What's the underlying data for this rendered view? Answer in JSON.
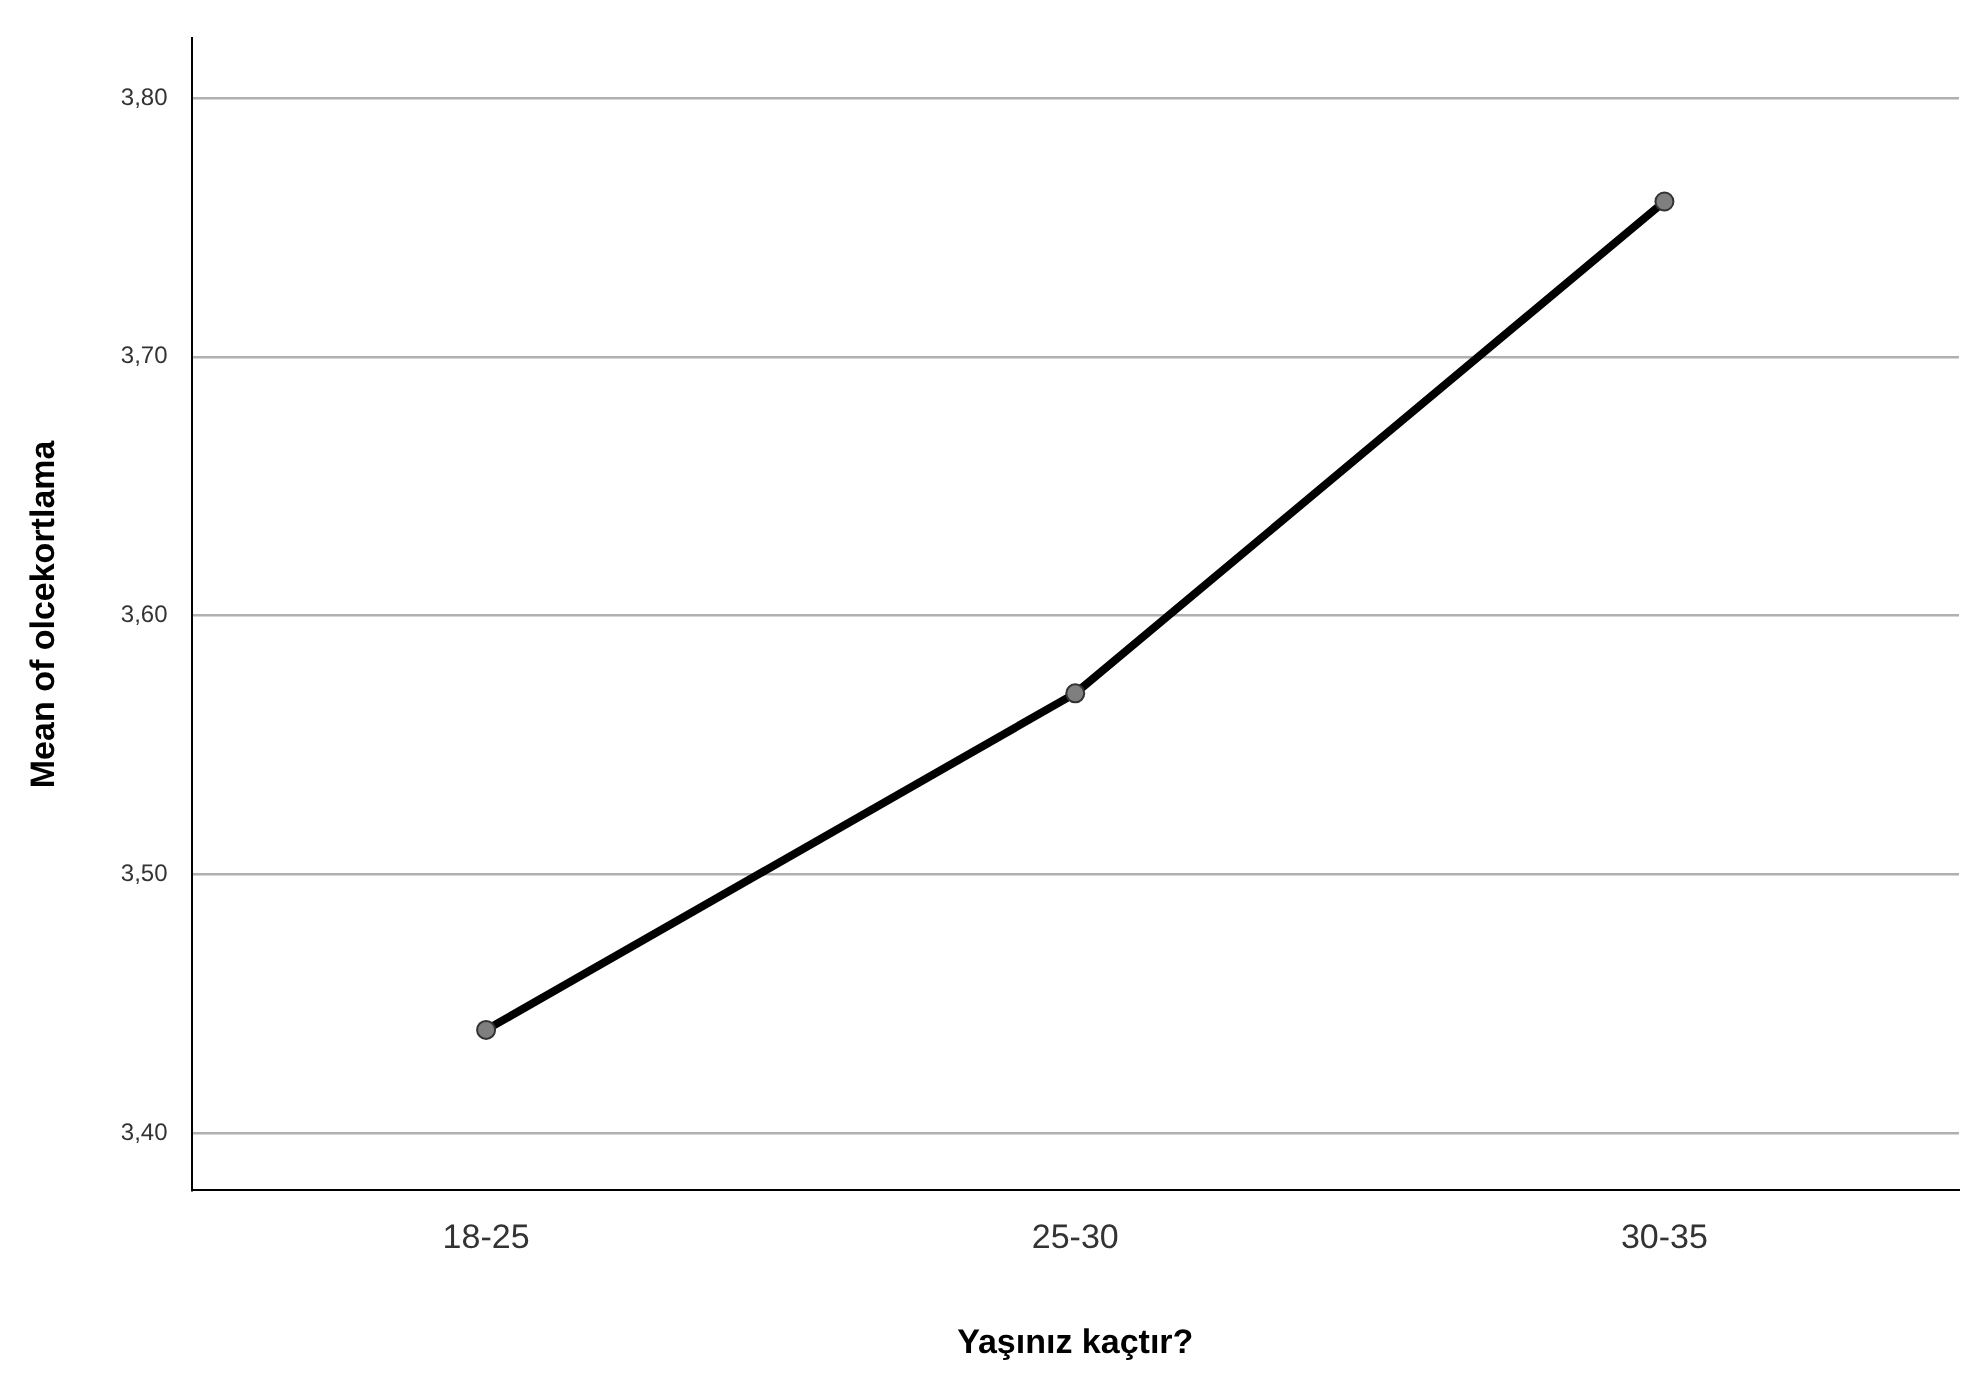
{
  "chart_data": {
    "type": "line",
    "xlabel": "Yaşınız kaçtır?",
    "ylabel": "Mean of olcekortlama",
    "categories": [
      "18-25",
      "25-30",
      "30-35"
    ],
    "series": [
      {
        "color": "#000000",
        "values": [
          3.44,
          3.57,
          3.76
        ]
      }
    ],
    "ylim": [
      3.378,
      3.823
    ],
    "yticks": [
      {
        "value": 3.4,
        "label": "3,40"
      },
      {
        "value": 3.5,
        "label": "3,50"
      },
      {
        "value": 3.6,
        "label": "3,60"
      },
      {
        "value": 3.7,
        "label": "3,70"
      },
      {
        "value": 3.8,
        "label": "3,80"
      }
    ],
    "grid": "y",
    "legend": false,
    "marker": "circle",
    "line_style": "solid"
  }
}
